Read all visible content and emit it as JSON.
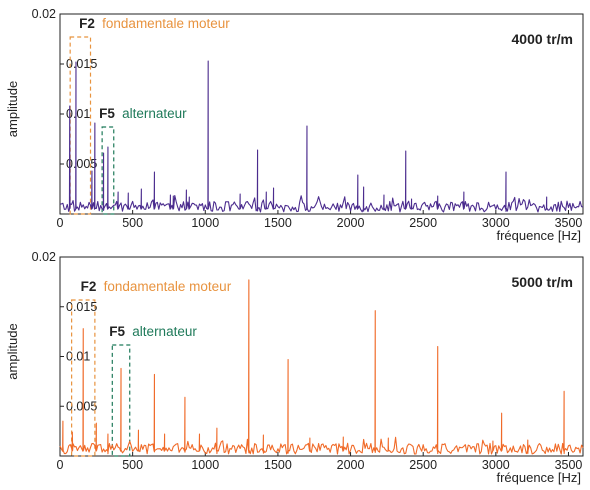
{
  "chart_data": [
    {
      "type": "line",
      "title": "4000 tr/m",
      "xlabel": "fréquence [Hz]",
      "ylabel": "amplitude",
      "xlim": [
        0,
        3600
      ],
      "ylim": [
        0,
        0.02
      ],
      "xticks": [
        0,
        500,
        1000,
        1500,
        2000,
        2500,
        3000,
        3500
      ],
      "xtick_labels": [
        "0",
        "500",
        "1000",
        "1500",
        "2000",
        "2500",
        "3000",
        "3500"
      ],
      "yticks": [
        0.005,
        0.01,
        0.015,
        0.02
      ],
      "ytick_labels": [
        "0.005",
        "0.01",
        "0.015",
        "0.02"
      ],
      "grid": false,
      "color": "#4b2c8e",
      "series": [
        {
          "peaks": [
            {
              "x": 67,
              "y": 0.0108
            },
            {
              "x": 110,
              "y": 0.0152
            },
            {
              "x": 220,
              "y": 0.0043
            },
            {
              "x": 240,
              "y": 0.0091
            },
            {
              "x": 300,
              "y": 0.0061
            },
            {
              "x": 330,
              "y": 0.0067
            },
            {
              "x": 400,
              "y": 0.0022
            },
            {
              "x": 470,
              "y": 0.0021
            },
            {
              "x": 560,
              "y": 0.0025
            },
            {
              "x": 650,
              "y": 0.0042
            },
            {
              "x": 760,
              "y": 0.0019
            },
            {
              "x": 780,
              "y": 0.0018
            },
            {
              "x": 870,
              "y": 0.0024
            },
            {
              "x": 890,
              "y": 0.0017
            },
            {
              "x": 1020,
              "y": 0.0153
            },
            {
              "x": 1240,
              "y": 0.002
            },
            {
              "x": 1360,
              "y": 0.0064
            },
            {
              "x": 1420,
              "y": 0.0022
            },
            {
              "x": 1470,
              "y": 0.0026
            },
            {
              "x": 1700,
              "y": 0.0088
            },
            {
              "x": 2050,
              "y": 0.0039
            },
            {
              "x": 2090,
              "y": 0.0027
            },
            {
              "x": 2230,
              "y": 0.0019
            },
            {
              "x": 2380,
              "y": 0.0063
            },
            {
              "x": 2420,
              "y": 0.0015
            },
            {
              "x": 2600,
              "y": 0.0018
            },
            {
              "x": 2780,
              "y": 0.0022
            },
            {
              "x": 3070,
              "y": 0.0042
            },
            {
              "x": 3350,
              "y": 0.0017
            }
          ]
        }
      ],
      "annotations": [
        {
          "tag": "F2",
          "text": "fondamentale moteur",
          "color": "#e8933f",
          "x_range": [
            70,
            210
          ]
        },
        {
          "tag": "F5",
          "text": "alternateur",
          "color": "#1f7a5a",
          "x_range": [
            290,
            370
          ]
        }
      ]
    },
    {
      "type": "line",
      "title": "5000 tr/m",
      "xlabel": "fréquence [Hz]",
      "ylabel": "amplitude",
      "xlim": [
        0,
        3600
      ],
      "ylim": [
        0,
        0.02
      ],
      "xticks": [
        0,
        500,
        1000,
        1500,
        2000,
        2500,
        3000,
        3500
      ],
      "xtick_labels": [
        "0",
        "500",
        "1000",
        "1500",
        "2000",
        "2500",
        "3000",
        "3500"
      ],
      "yticks": [
        0.005,
        0.01,
        0.015,
        0.02
      ],
      "ytick_labels": [
        "0.005",
        "0.01",
        "0.015",
        "0.02"
      ],
      "grid": false,
      "color": "#f06a28",
      "series": [
        {
          "peaks": [
            {
              "x": 20,
              "y": 0.0035
            },
            {
              "x": 85,
              "y": 0.0024
            },
            {
              "x": 160,
              "y": 0.0128
            },
            {
              "x": 250,
              "y": 0.0033
            },
            {
              "x": 330,
              "y": 0.0022
            },
            {
              "x": 420,
              "y": 0.0088
            },
            {
              "x": 540,
              "y": 0.0026
            },
            {
              "x": 650,
              "y": 0.0082
            },
            {
              "x": 720,
              "y": 0.0022
            },
            {
              "x": 860,
              "y": 0.0059
            },
            {
              "x": 960,
              "y": 0.0022
            },
            {
              "x": 1080,
              "y": 0.0028
            },
            {
              "x": 1300,
              "y": 0.0177
            },
            {
              "x": 1400,
              "y": 0.0021
            },
            {
              "x": 1570,
              "y": 0.0097
            },
            {
              "x": 1720,
              "y": 0.0018
            },
            {
              "x": 1950,
              "y": 0.0019
            },
            {
              "x": 2170,
              "y": 0.0146
            },
            {
              "x": 2260,
              "y": 0.0018
            },
            {
              "x": 2600,
              "y": 0.011
            },
            {
              "x": 2980,
              "y": 0.0015
            },
            {
              "x": 3040,
              "y": 0.0043
            },
            {
              "x": 3220,
              "y": 0.0016
            },
            {
              "x": 3470,
              "y": 0.0065
            }
          ]
        }
      ],
      "annotations": [
        {
          "tag": "F2",
          "text": "fondamentale moteur",
          "color": "#e8933f",
          "x_range": [
            80,
            240
          ]
        },
        {
          "tag": "F5",
          "text": "alternateur",
          "color": "#1f7a5a",
          "x_range": [
            360,
            480
          ]
        }
      ]
    }
  ]
}
